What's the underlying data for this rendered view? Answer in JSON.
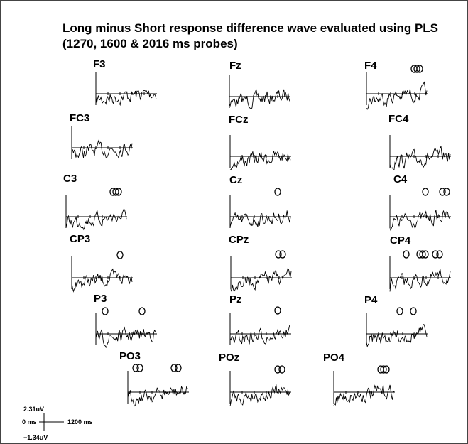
{
  "title": {
    "line1": "Long minus Short response difference wave evaluated using PLS",
    "line2": "(1270, 1600 & 2016 ms probes)"
  },
  "panels": [
    "F3",
    "Fz",
    "F4",
    "FC3",
    "FCz",
    "FC4",
    "C3",
    "Cz",
    "C4",
    "CP3",
    "CPz",
    "CP4",
    "P3",
    "Pz",
    "P4",
    "PO3",
    "POz",
    "PO4"
  ],
  "scale": {
    "top": "2.31uV",
    "left": "0 ms",
    "right": "1200 ms",
    "bottom": "−1.34uV"
  }
}
